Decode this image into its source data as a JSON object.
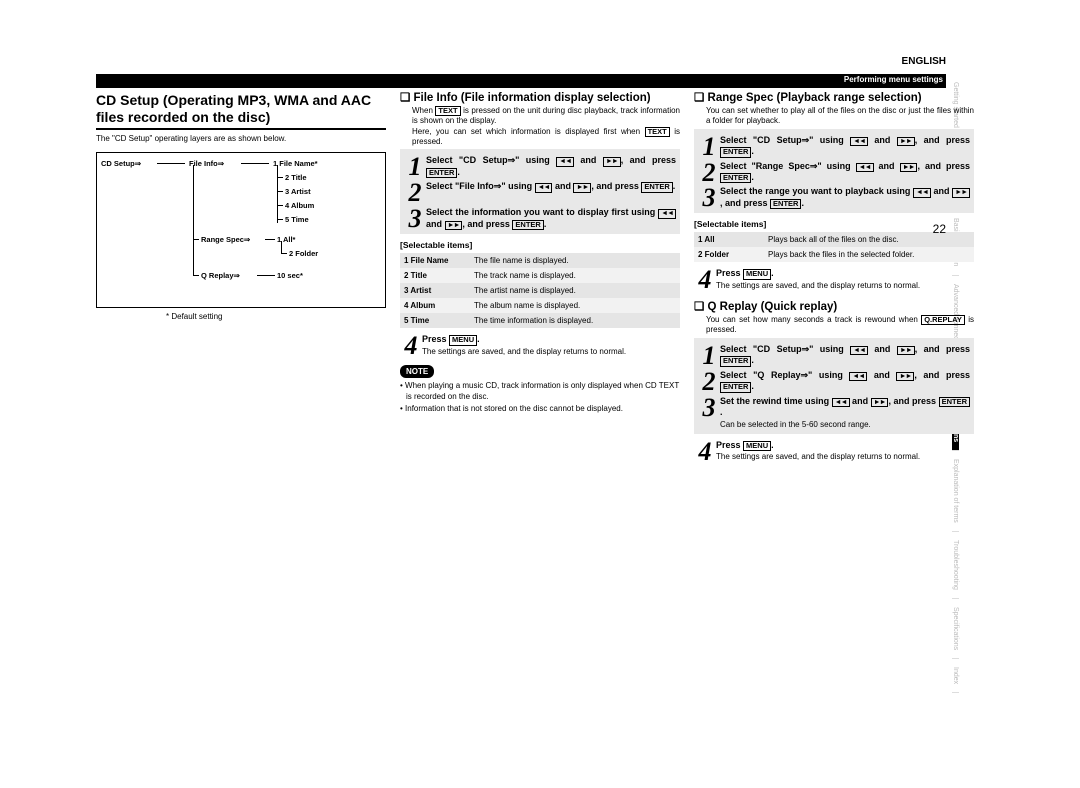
{
  "top": {
    "lang": "ENGLISH",
    "bar_text": "Performing menu settings"
  },
  "left": {
    "heading": "CD Setup (Operating MP3, WMA and AAC files recorded on the disc)",
    "intro": "The \"CD Setup\" operating layers are as shown below.",
    "tree": {
      "root": "CD Setup⇒",
      "branch1": "File Info⇒",
      "branch1_items": [
        "1 File Name*",
        "2 Title",
        "3 Artist",
        "4 Album",
        "5 Time"
      ],
      "branch2": "Range Spec⇒",
      "branch2_items": [
        "1 All*",
        "2 Folder"
      ],
      "branch3": "Q Replay⇒",
      "branch3_items": [
        "10 sec*"
      ]
    },
    "default_note": "* Default setting"
  },
  "mid": {
    "heading": "File Info (File information display selection)",
    "intro_a": "When ",
    "intro_b": " is pressed on the unit during disc playback, track information is shown on the display.",
    "intro_c": "Here, you can set which information is displayed first when ",
    "intro_d": " is pressed.",
    "text_key": "TEXT",
    "steps": [
      {
        "n": "1",
        "t": "Select \"CD Setup⇒\" using [⏮] and [⏭], and press [ENTER]."
      },
      {
        "n": "2",
        "t": "Select \"File Info⇒\" using [⏮] and [⏭], and press [ENTER]."
      },
      {
        "n": "3",
        "t": "Select the information you want to display first using [⏮] and [⏭], and press [ENTER]."
      }
    ],
    "sel_label": "[Selectable items]",
    "items": [
      {
        "k": "1 File Name",
        "v": "The file name is displayed."
      },
      {
        "k": "2 Title",
        "v": "The track name is displayed."
      },
      {
        "k": "3 Artist",
        "v": "The artist name is displayed."
      },
      {
        "k": "4 Album",
        "v": "The album name is displayed."
      },
      {
        "k": "5 Time",
        "v": "The time information is displayed."
      }
    ],
    "step4_head": "Press [MENU].",
    "step4_sub": "The settings are saved, and the display returns to normal.",
    "note_label": "NOTE",
    "notes": [
      "• When playing a music CD, track information is only displayed when CD TEXT is recorded on the disc.",
      "• Information that is not stored on the disc cannot be displayed."
    ]
  },
  "right": {
    "range": {
      "heading": "Range Spec (Playback range selection)",
      "intro": "You can set whether to play all of the files on the disc or just the files within a folder for playback.",
      "steps": [
        {
          "n": "1",
          "t": "Select \"CD Setup⇒\" using [⏮] and [⏭], and press [ENTER]."
        },
        {
          "n": "2",
          "t": "Select \"Range Spec⇒\" using [⏮] and [⏭], and press [ENTER]."
        },
        {
          "n": "3",
          "t": "Select the range you want to playback using [⏮] and [⏭], and press [ENTER]."
        }
      ],
      "sel_label": "[Selectable items]",
      "items": [
        {
          "k": "1 All",
          "v": "Plays back all of the files on the disc."
        },
        {
          "k": "2 Folder",
          "v": "Plays back the files in the selected folder."
        }
      ],
      "step4_head": "Press [MENU].",
      "step4_sub": "The settings are saved, and the display returns to normal."
    },
    "qreplay": {
      "heading": "Q Replay (Quick replay)",
      "intro_a": "You can set how many seconds a track is rewound when ",
      "intro_b": " is pressed.",
      "key": "Q.REPLAY",
      "steps": [
        {
          "n": "1",
          "t": "Select \"CD Setup⇒\" using [⏮] and [⏭], and press [ENTER]."
        },
        {
          "n": "2",
          "t": "Select \"Q Replay⇒\" using [⏮] and [⏭], and press [ENTER]."
        },
        {
          "n": "3",
          "t": "Set the rewind time using [⏮] and [⏭], and press [ENTER].",
          "sub": "Can be selected in the 5-60 second range."
        }
      ],
      "step4_head": "Press [MENU].",
      "step4_sub": "The settings are saved, and the display returns to normal."
    }
  },
  "side_tabs": [
    "Getting started",
    "Basic connections",
    "Basic operation",
    "Advanced connections",
    "Advanced operations",
    "Explanation of terms",
    "Troubleshooting",
    "Specifications",
    "Index"
  ],
  "side_active_index": 4,
  "page_number": "22"
}
